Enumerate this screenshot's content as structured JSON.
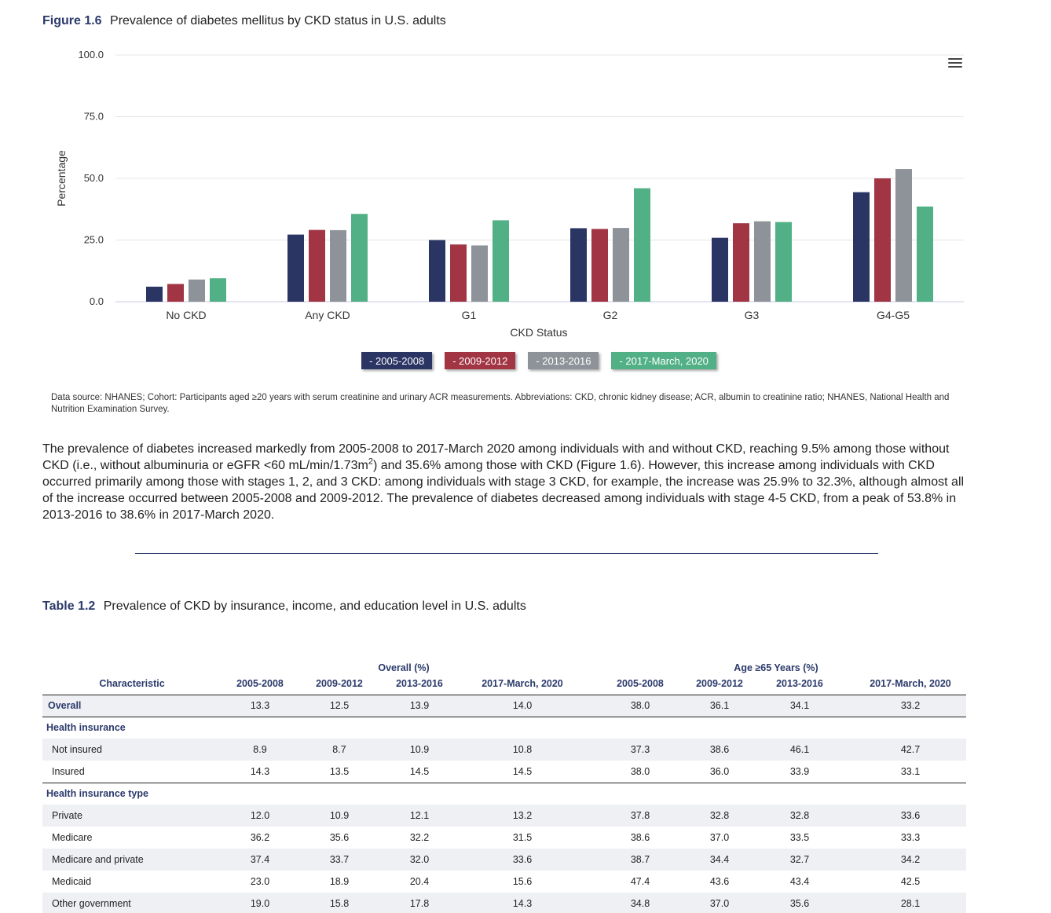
{
  "figure": {
    "number": "Figure 1.6",
    "title": "Prevalence of diabetes mellitus by CKD status in U.S. adults",
    "data_source": "Data source: NHANES; Cohort: Participants aged ≥20 years with serum creatinine and urinary ACR measurements. Abbreviations: CKD, chronic kidney disease; ACR, albumin to creatinine ratio; NHANES, National Health and Nutrition Examination Survey."
  },
  "chart_data": {
    "type": "bar",
    "title": "",
    "xlabel": "CKD Status",
    "ylabel": "Percentage",
    "ylim": [
      0,
      100
    ],
    "yticks": [
      "0.0",
      "25.0",
      "50.0",
      "75.0",
      "100.0"
    ],
    "grid": true,
    "legend_placement": "bottom",
    "categories": [
      "No CKD",
      "Any CKD",
      "G1",
      "G2",
      "G3",
      "G4-G5"
    ],
    "series": [
      {
        "name": "2005-2008",
        "legend_label": "- 2005-2008",
        "color": "#2b3564",
        "values": [
          6.1,
          27.2,
          25.0,
          29.8,
          25.9,
          44.4
        ]
      },
      {
        "name": "2009-2012",
        "legend_label": "- 2009-2012",
        "color": "#a23544",
        "values": [
          7.2,
          29.1,
          23.2,
          29.5,
          31.8,
          50.0
        ]
      },
      {
        "name": "2013-2016",
        "legend_label": "- 2013-2016",
        "color": "#8e9399",
        "values": [
          9.0,
          29.0,
          22.8,
          29.9,
          32.6,
          53.8
        ]
      },
      {
        "name": "2017-March, 2020",
        "legend_label": "- 2017-March, 2020",
        "color": "#52b086",
        "values": [
          9.5,
          35.6,
          33.0,
          46.0,
          32.3,
          38.6
        ]
      }
    ]
  },
  "paragraph": {
    "part1": "The prevalence of diabetes increased markedly from 2005-2008 to 2017-March 2020 among individuals with and without CKD, reaching 9.5% among those without CKD (i.e., without albuminuria or eGFR <60 mL/min/1.73m",
    "sup": "2",
    "part2": ") and 35.6% among those with CKD (Figure 1.6). However, this increase among individuals with CKD occurred primarily among those with stages 1, 2, and 3 CKD: among individuals with stage 3 CKD, for example, the increase was 25.9% to 32.3%, although almost all of the increase occurred between 2005-2008 and 2009-2012. The prevalence of diabetes decreased among individuals with stage 4-5 CKD, from a peak of 53.8% in 2013-2016 to 38.6% in 2017-March 2020."
  },
  "table": {
    "number": "Table 1.2",
    "title": "Prevalence of CKD by insurance, income, and education level in U.S. adults",
    "group_headers": [
      "Overall (%)",
      "Age ≥65 Years (%)"
    ],
    "columns": [
      "Characteristic",
      "2005-2008",
      "2009-2012",
      "2013-2016",
      "2017-March, 2020",
      "2005-2008",
      "2009-2012",
      "2013-2016",
      "2017-March, 2020"
    ],
    "overall_row": {
      "label": "Overall",
      "values": [
        "13.3",
        "12.5",
        "13.9",
        "14.0",
        "38.0",
        "36.1",
        "34.1",
        "33.2"
      ]
    },
    "sections": [
      {
        "title": "Health insurance",
        "rows": [
          {
            "label": "Not insured",
            "values": [
              "8.9",
              "8.7",
              "10.9",
              "10.8",
              "37.3",
              "38.6",
              "46.1",
              "42.7"
            ]
          },
          {
            "label": "Insured",
            "values": [
              "14.3",
              "13.5",
              "14.5",
              "14.5",
              "38.0",
              "36.0",
              "33.9",
              "33.1"
            ]
          }
        ]
      },
      {
        "title": "Health insurance type",
        "rows": [
          {
            "label": "Private",
            "values": [
              "12.0",
              "10.9",
              "12.1",
              "13.2",
              "37.8",
              "32.8",
              "32.8",
              "33.6"
            ]
          },
          {
            "label": "Medicare",
            "values": [
              "36.2",
              "35.6",
              "32.2",
              "31.5",
              "38.6",
              "37.0",
              "33.5",
              "33.3"
            ]
          },
          {
            "label": "Medicare and private",
            "values": [
              "37.4",
              "33.7",
              "32.0",
              "33.6",
              "38.7",
              "34.4",
              "32.7",
              "34.2"
            ]
          },
          {
            "label": "Medicaid",
            "values": [
              "23.0",
              "18.9",
              "20.4",
              "15.6",
              "47.4",
              "43.6",
              "43.4",
              "42.5"
            ]
          },
          {
            "label": "Other government",
            "values": [
              "19.0",
              "15.8",
              "17.8",
              "14.3",
              "34.8",
              "37.0",
              "35.6",
              "28.1"
            ]
          }
        ]
      }
    ]
  },
  "icons": {
    "chart_menu": "hamburger-menu-icon"
  }
}
